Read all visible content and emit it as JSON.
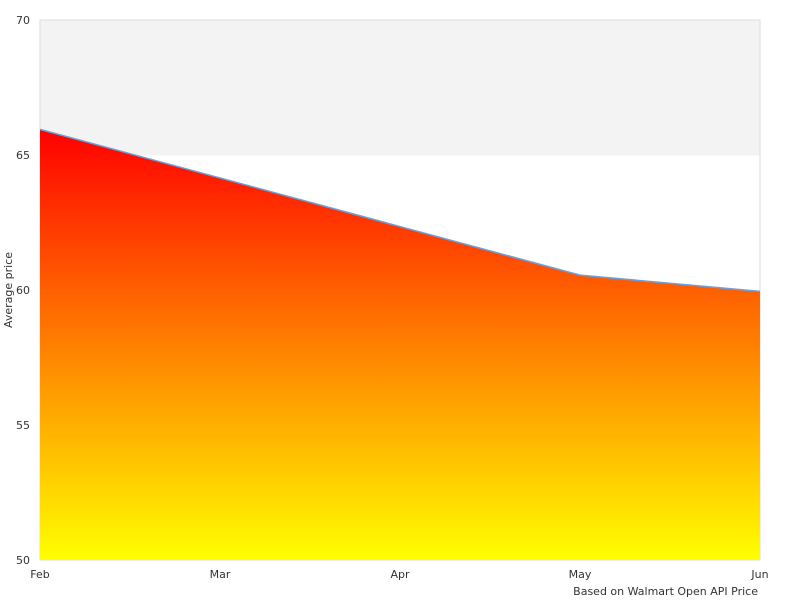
{
  "chart_data": {
    "type": "area",
    "categories": [
      "Feb",
      "Mar",
      "Apr",
      "May",
      "Jun"
    ],
    "series": [
      {
        "values": [
          65.95,
          64.15,
          62.35,
          60.55,
          59.95
        ]
      }
    ],
    "ylabel": "Average price",
    "ylim": [
      50,
      70
    ],
    "yticks": [
      50,
      55,
      60,
      65,
      70
    ],
    "credit": "Based on Walmart Open API Price",
    "colors": {
      "fill_top": "#ff0000",
      "fill_bottom": "#ffff00",
      "line": "#6f9fd8",
      "band_alt": "#f3f3f3",
      "band": "#ffffff",
      "grid_border": "#dddddd"
    },
    "plot_bands": [
      {
        "from": 65,
        "to": 70,
        "color": "#f3f3f3"
      }
    ]
  }
}
